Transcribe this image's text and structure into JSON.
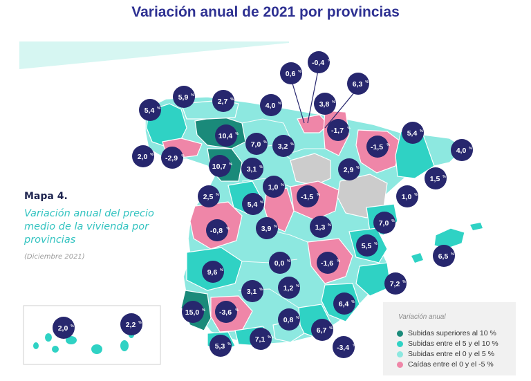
{
  "title": "Variación anual de 2021 por provincias",
  "map_label": "Mapa 4.",
  "map_subtitle": "Variación anual del precio medio de la vivienda por provincias",
  "map_date": "(Diciembre 2021)",
  "colors": {
    "up_over_10": "#1a8a7a",
    "up_5_10": "#2fd2c4",
    "up_0_5": "#8de8e0",
    "down_0_5": "#ef86a8",
    "no_data": "#cccccc",
    "bubble": "#27276e"
  },
  "legend": {
    "title": "Variación anual",
    "items": [
      {
        "label": "Subidas superiores al 10 %",
        "color": "#1a8a7a"
      },
      {
        "label": "Subidas entre el 5  y el 10 %",
        "color": "#2fd2c4"
      },
      {
        "label": "Subidas entre el 0 y el 5 %",
        "color": "#8de8e0"
      },
      {
        "label": "Caídas entre el 0 y el -5 %",
        "color": "#ef86a8"
      }
    ]
  },
  "values": [
    {
      "v": "-0,4",
      "n": -0.4
    },
    {
      "v": "0,6",
      "n": 0.6
    },
    {
      "v": "6,3",
      "n": 6.3
    },
    {
      "v": "5,9",
      "n": 5.9
    },
    {
      "v": "2,7",
      "n": 2.7
    },
    {
      "v": "4,0",
      "n": 4.0
    },
    {
      "v": "3,8",
      "n": 3.8
    },
    {
      "v": "5,4",
      "n": 5.4
    },
    {
      "v": "-1,7",
      "n": -1.7
    },
    {
      "v": "5,4",
      "n": 5.4
    },
    {
      "v": "10,4",
      "n": 10.4
    },
    {
      "v": "-1,5",
      "n": -1.5
    },
    {
      "v": "4,0",
      "n": 4.0
    },
    {
      "v": "7,0",
      "n": 7.0
    },
    {
      "v": "3,2",
      "n": 3.2
    },
    {
      "v": "2,0",
      "n": 2.0
    },
    {
      "v": "-2,9",
      "n": -2.9
    },
    {
      "v": "10,7",
      "n": 10.7
    },
    {
      "v": "3,1",
      "n": 3.1
    },
    {
      "v": "2,9",
      "n": 2.9
    },
    {
      "v": "1,5",
      "n": 1.5
    },
    {
      "v": "1,0",
      "n": 1.0
    },
    {
      "v": "1,0",
      "n": 1.0
    },
    {
      "v": "2,5",
      "n": 2.5
    },
    {
      "v": "-1,5",
      "n": -1.5
    },
    {
      "v": "5,4",
      "n": 5.4
    },
    {
      "v": "7,0",
      "n": 7.0
    },
    {
      "v": "-0,8",
      "n": -0.8
    },
    {
      "v": "3,9",
      "n": 3.9
    },
    {
      "v": "1,3",
      "n": 1.3
    },
    {
      "v": "6,5",
      "n": 6.5
    },
    {
      "v": "5,5",
      "n": 5.5
    },
    {
      "v": "0,0",
      "n": 0.0
    },
    {
      "v": "-1,6",
      "n": -1.6
    },
    {
      "v": "9,6",
      "n": 9.6
    },
    {
      "v": "7,2",
      "n": 7.2
    },
    {
      "v": "3,1",
      "n": 3.1
    },
    {
      "v": "1,2",
      "n": 1.2
    },
    {
      "v": "6,4",
      "n": 6.4
    },
    {
      "v": "15,0",
      "n": 15.0
    },
    {
      "v": "-3,6",
      "n": -3.6
    },
    {
      "v": "0,8",
      "n": 0.8
    },
    {
      "v": "6,7",
      "n": 6.7
    },
    {
      "v": "5,3",
      "n": 5.3
    },
    {
      "v": "7,1",
      "n": 7.1
    },
    {
      "v": "-3,4",
      "n": -3.4
    },
    {
      "v": "2,0",
      "n": 2.0
    },
    {
      "v": "2,2",
      "n": 2.2
    }
  ],
  "pct_symbol": "%"
}
